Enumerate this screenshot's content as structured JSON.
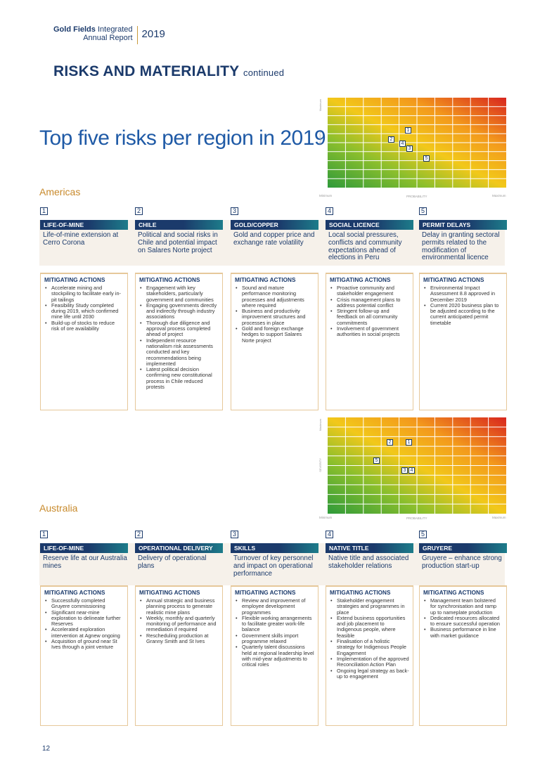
{
  "header": {
    "brand_bold": "Gold Fields",
    "brand_light": "Integrated",
    "brand_line2": "Annual Report",
    "year": "2019"
  },
  "page_title": {
    "main": "RISKS AND MATERIALITY",
    "continued": "continued"
  },
  "big_title": "Top five risks per region in 2019",
  "heatmap_labels": {
    "maximum": "Maximum",
    "severity": "SEVERITY",
    "minimum": "Minimum",
    "probability": "PROBABILITY"
  },
  "americas": {
    "region": "Americas",
    "markers": [
      "1",
      "2",
      "4",
      "3",
      "5"
    ],
    "risks": [
      {
        "num": "1",
        "tag": "LIFE-OF-MINE",
        "desc": "Life-of-mine extension at Cerro Corona",
        "mitigating_title": "MITIGATING ACTIONS",
        "actions": [
          "Accelerate mining and stockpiling to facilitate early in-pit tailings",
          "Feasibility Study completed during 2019, which confirmed mine life until 2030",
          "Build-up of stocks to reduce risk of ore availability"
        ]
      },
      {
        "num": "2",
        "tag": "CHILE",
        "desc": "Political and social risks in Chile and potential impact on Salares Norte project",
        "mitigating_title": "MITIGATING ACTIONS",
        "actions": [
          "Engagement with key stakeholders, particularly government and communities",
          "Engaging governments directly and indirectly through industry associations",
          "Thorough due diligence and approval process completed ahead of project",
          "Independent resource nationalism risk assessments conducted and key recommendations being implemented",
          "Latest political decision confirming new constitutional process in Chile reduced protests"
        ]
      },
      {
        "num": "3",
        "tag": "GOLD/COPPER",
        "desc": "Gold and copper price and exchange rate volatility",
        "mitigating_title": "MITIGATING ACTIONS",
        "actions": [
          "Sound and mature performance monitoring processes and adjustments where required",
          "Business and productivity improvement structures and processes in place",
          "Gold and foreign exchange hedges to support Salares Norte project"
        ]
      },
      {
        "num": "4",
        "tag": "SOCIAL LICENCE",
        "desc": "Local social pressures, conflicts and community expectations ahead of elections in Peru",
        "mitigating_title": "MITIGATING ACTIONS",
        "actions": [
          "Proactive community and stakeholder engagement",
          "Crisis management plans to address potential conflict",
          "Stringent follow-up and feedback on all community commitments",
          "Involvement of government authorities in social projects"
        ]
      },
      {
        "num": "5",
        "tag": "PERMIT DELAYS",
        "desc": "Delay in granting sectoral permits related to the modification of environmental licence",
        "mitigating_title": "MITIGATING ACTIONS",
        "actions": [
          "Environmental Impact Assessment 8.8 approved in December 2019",
          "Current 2020 business plan to be adjusted according to the current anticipated permit timetable"
        ]
      }
    ]
  },
  "australia": {
    "region": "Australia",
    "markers": [
      "2",
      "1",
      "5",
      "3",
      "4"
    ],
    "risks": [
      {
        "num": "1",
        "tag": "LIFE-OF-MINE",
        "desc": "Reserve life at our Australia mines",
        "mitigating_title": "MITIGATING ACTIONS",
        "actions": [
          "Successfully completed Gruyere commissioning",
          "Significant near-mine exploration to delineate further Reserves",
          "Accelerated exploration intervention at Agnew ongoing",
          "Acquisition of ground near St Ives through a joint venture"
        ]
      },
      {
        "num": "2",
        "tag": "OPERATIONAL DELIVERY",
        "desc": "Delivery of operational plans",
        "mitigating_title": "MITIGATING ACTIONS",
        "actions": [
          "Annual strategic and business planning process to generate realistic mine plans",
          "Weekly, monthly and quarterly monitoring of performance and remediation if required",
          "Rescheduling production at Granny Smith and St Ives"
        ]
      },
      {
        "num": "3",
        "tag": "SKILLS",
        "desc": "Turnover of key personnel and impact on operational performance",
        "mitigating_title": "MITIGATING ACTIONS",
        "actions": [
          "Review and improvement of employee development programmes",
          "Flexible working arrangements to facilitate greater work-life balance",
          "Government skills import programme relaxed",
          "Quarterly talent discussions held at regional leadership level with mid-year adjustments to critical roles"
        ]
      },
      {
        "num": "4",
        "tag": "NATIVE TITLE",
        "desc": "Native title and associated stakeholder relations",
        "mitigating_title": "MITIGATING ACTIONS",
        "actions": [
          "Stakeholder engagement strategies and programmes in place",
          "Extend business opportunities and job placement to Indigenous people, where feasible",
          "Finalisation of a holistic strategy for Indigenous People Engagement",
          "Implementation of the approved Reconciliation Action Plan",
          "Ongoing legal strategy as back-up to engagement"
        ]
      },
      {
        "num": "5",
        "tag": "GRUYERE",
        "desc": "Gruyere – enhance strong production start-up",
        "mitigating_title": "MITIGATING ACTIONS",
        "actions": [
          "Management team bolstered for synchronisation and ramp up to nameplate production",
          "Dedicated resources allocated to ensure successful operation",
          "Business performance in line with market guidance"
        ]
      }
    ]
  },
  "page_number": "12",
  "colors": {
    "navy": "#1b3a6b",
    "gold": "#c88a2c",
    "teal": "#1d7c8a"
  }
}
